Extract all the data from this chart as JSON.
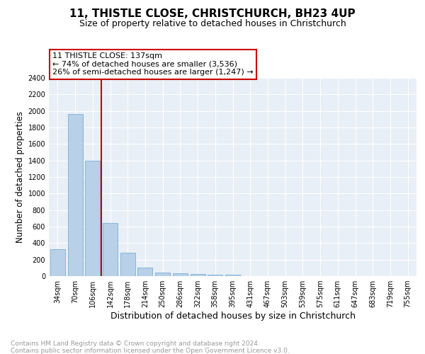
{
  "title": "11, THISTLE CLOSE, CHRISTCHURCH, BH23 4UP",
  "subtitle": "Size of property relative to detached houses in Christchurch",
  "xlabel": "Distribution of detached houses by size in Christchurch",
  "ylabel": "Number of detached properties",
  "categories": [
    "34sqm",
    "70sqm",
    "106sqm",
    "142sqm",
    "178sqm",
    "214sqm",
    "250sqm",
    "286sqm",
    "322sqm",
    "358sqm",
    "395sqm",
    "431sqm",
    "467sqm",
    "503sqm",
    "539sqm",
    "575sqm",
    "611sqm",
    "647sqm",
    "683sqm",
    "719sqm",
    "755sqm"
  ],
  "values": [
    325,
    1960,
    1400,
    645,
    285,
    105,
    45,
    32,
    22,
    18,
    15,
    0,
    0,
    0,
    0,
    0,
    0,
    0,
    0,
    0,
    0
  ],
  "bar_color": "#b8d0e8",
  "bar_edge_color": "#7aafd4",
  "vline_x_index": 2.5,
  "vline_color": "#cc0000",
  "annotation_line1": "11 THISTLE CLOSE: 137sqm",
  "annotation_line2": "← 74% of detached houses are smaller (3,536)",
  "annotation_line3": "26% of semi-detached houses are larger (1,247) →",
  "annotation_box_color": "#cc0000",
  "ylim": [
    0,
    2400
  ],
  "yticks": [
    0,
    200,
    400,
    600,
    800,
    1000,
    1200,
    1400,
    1600,
    1800,
    2000,
    2200,
    2400
  ],
  "footer_line1": "Contains HM Land Registry data © Crown copyright and database right 2024.",
  "footer_line2": "Contains public sector information licensed under the Open Government Licence v3.0.",
  "background_color": "#ffffff",
  "plot_bg_color": "#e8eff6",
  "grid_color": "#ffffff",
  "title_fontsize": 11,
  "subtitle_fontsize": 9,
  "xlabel_fontsize": 9,
  "ylabel_fontsize": 8.5,
  "tick_fontsize": 7,
  "annotation_fontsize": 8,
  "footer_fontsize": 6.5
}
